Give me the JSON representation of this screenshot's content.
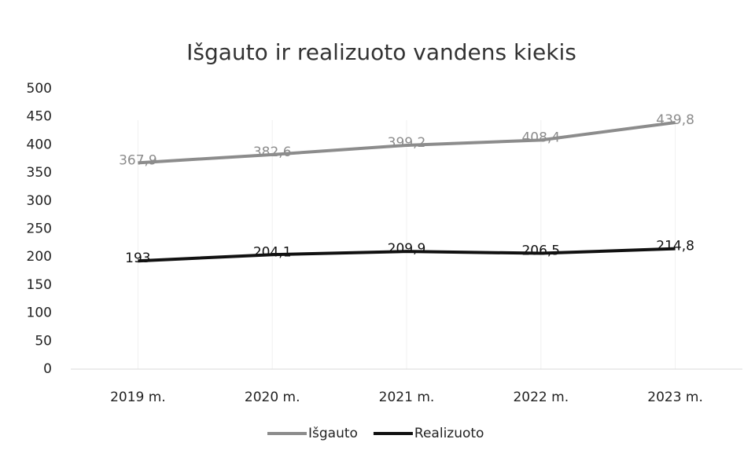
{
  "chart_data": {
    "type": "line",
    "title": "Išgauto ir realizuoto vandens kiekis",
    "categories": [
      "2019 m.",
      "2020 m.",
      "2021 m.",
      "2022 m.",
      "2023 m."
    ],
    "series": [
      {
        "name": "Išgauto",
        "color": "#8c8c8c",
        "values": [
          367.9,
          382.6,
          399.2,
          408.4,
          439.8
        ],
        "value_labels": [
          "367,9",
          "382,6",
          "399,2",
          "408,4",
          "439,8"
        ]
      },
      {
        "name": "Realizuoto",
        "color": "#111111",
        "values": [
          193,
          204.1,
          209.9,
          206.5,
          214.8
        ],
        "value_labels": [
          "193",
          "204,1",
          "209,9",
          "206,5",
          "214,8"
        ]
      }
    ],
    "ylim": [
      0,
      500
    ],
    "yticks": [
      0,
      50,
      100,
      150,
      200,
      250,
      300,
      350,
      400,
      450,
      500
    ],
    "grid": false,
    "legend": "bottom"
  }
}
